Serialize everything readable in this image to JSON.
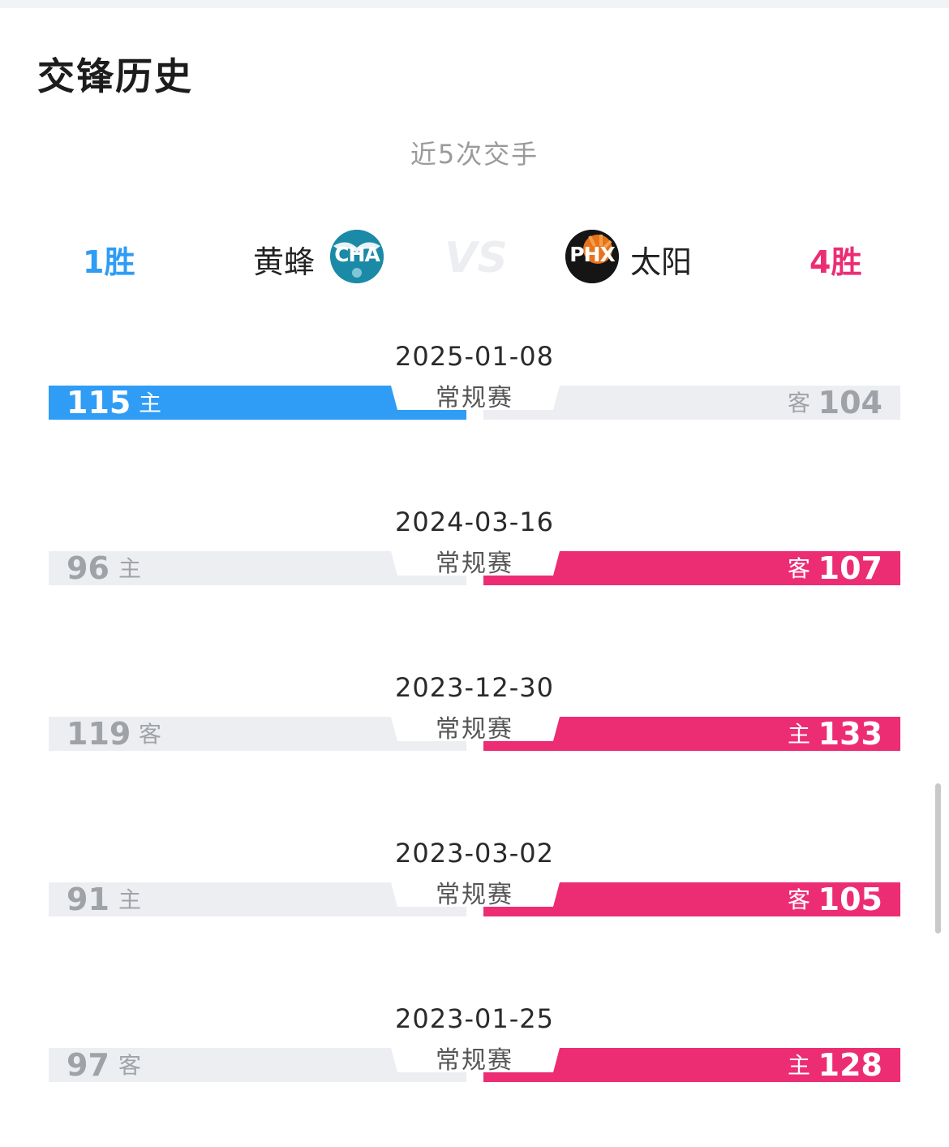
{
  "header": {
    "title": "交锋历史",
    "subtitle": "近5次交手"
  },
  "teams": {
    "home": {
      "name": "黄蜂",
      "abbr": "CHA",
      "wins_label": "1胜",
      "color": "#2f9cf5"
    },
    "away": {
      "name": "太阳",
      "abbr": "PHX",
      "wins_label": "4胜",
      "color": "#ec2d74"
    },
    "vs_label": "VS"
  },
  "matches": [
    {
      "date": "2025-01-08",
      "type": "常规赛",
      "left_score": "115",
      "left_ha": "主",
      "right_score": "104",
      "right_ha": "客",
      "winner": "left"
    },
    {
      "date": "2024-03-16",
      "type": "常规赛",
      "left_score": "96",
      "left_ha": "主",
      "right_score": "107",
      "right_ha": "客",
      "winner": "right"
    },
    {
      "date": "2023-12-30",
      "type": "常规赛",
      "left_score": "119",
      "left_ha": "客",
      "right_score": "133",
      "right_ha": "主",
      "winner": "right"
    },
    {
      "date": "2023-03-02",
      "type": "常规赛",
      "left_score": "91",
      "left_ha": "主",
      "right_score": "105",
      "right_ha": "客",
      "winner": "right"
    },
    {
      "date": "2023-01-25",
      "type": "常规赛",
      "left_score": "97",
      "left_ha": "客",
      "right_score": "128",
      "right_ha": "主",
      "winner": "right"
    }
  ],
  "colors": {
    "win_left": "#2f9cf5",
    "win_right": "#ec2d74",
    "lose_bar": "#eceef1",
    "lose_text": "#9fa3a8"
  }
}
